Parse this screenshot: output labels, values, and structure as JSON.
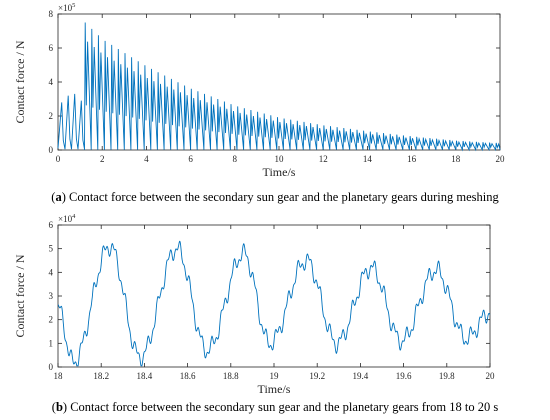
{
  "chart_data": [
    {
      "type": "line",
      "panel_label": "a",
      "caption": "Contact force between the secondary sun gear and the planetary gears during meshing",
      "xlabel": "Time/s",
      "ylabel": "Contact force / N",
      "xlim": [
        0,
        20
      ],
      "ylim": [
        0,
        8
      ],
      "y_exponent_label": "×10",
      "y_exponent": "5",
      "xticks": [
        0,
        2,
        4,
        6,
        8,
        10,
        12,
        14,
        16,
        18,
        20
      ],
      "yticks": [
        0,
        2,
        4,
        6,
        8
      ],
      "color": "#0072BD",
      "series": [
        {
          "peak_start_x": [
            0.0,
            1.2
          ],
          "pre_impact_peaks_y": [
            2.8,
            3.2,
            3.3,
            2.9
          ],
          "impact_time": 1.2,
          "initial_peak": 7.5,
          "envelope_points": [
            [
              1.2,
              7.5
            ],
            [
              2,
              6.5
            ],
            [
              4,
              4.9
            ],
            [
              6,
              3.6
            ],
            [
              8,
              2.6
            ],
            [
              10,
              1.9
            ],
            [
              12,
              1.45
            ],
            [
              14,
              1.1
            ],
            [
              16,
              0.8
            ],
            [
              18,
              0.55
            ],
            [
              20,
              0.4
            ]
          ],
          "oscillation_period": 0.3
        }
      ]
    },
    {
      "type": "line",
      "panel_label": "b",
      "caption": "Contact force between the secondary sun gear and the planetary gears from 18 to 20 s",
      "xlabel": "Time/s",
      "ylabel": "Contact force / N",
      "xlim": [
        18,
        20
      ],
      "ylim": [
        0,
        6
      ],
      "y_exponent_label": "×10",
      "y_exponent": "4",
      "xticks": [
        18,
        18.2,
        18.4,
        18.6,
        18.8,
        19,
        19.2,
        19.4,
        19.6,
        19.8,
        20
      ],
      "yticks": [
        0,
        1,
        2,
        3,
        4,
        5,
        6
      ],
      "color": "#0072BD",
      "series": [
        {
          "peaks": [
            [
              18.24,
              5.1
            ],
            [
              18.55,
              5.0
            ],
            [
              18.86,
              4.8
            ],
            [
              19.15,
              4.5
            ],
            [
              19.45,
              4.2
            ],
            [
              19.75,
              4.1
            ]
          ],
          "troughs": [
            [
              18.07,
              0.2
            ],
            [
              18.38,
              0.4
            ],
            [
              18.69,
              0.7
            ],
            [
              18.98,
              1.0
            ],
            [
              19.29,
              1.0
            ],
            [
              19.59,
              1.1
            ],
            [
              19.89,
              1.2
            ]
          ],
          "end_value": 2.3,
          "period": 0.3,
          "ripple_amplitude": 0.45
        }
      ]
    }
  ]
}
